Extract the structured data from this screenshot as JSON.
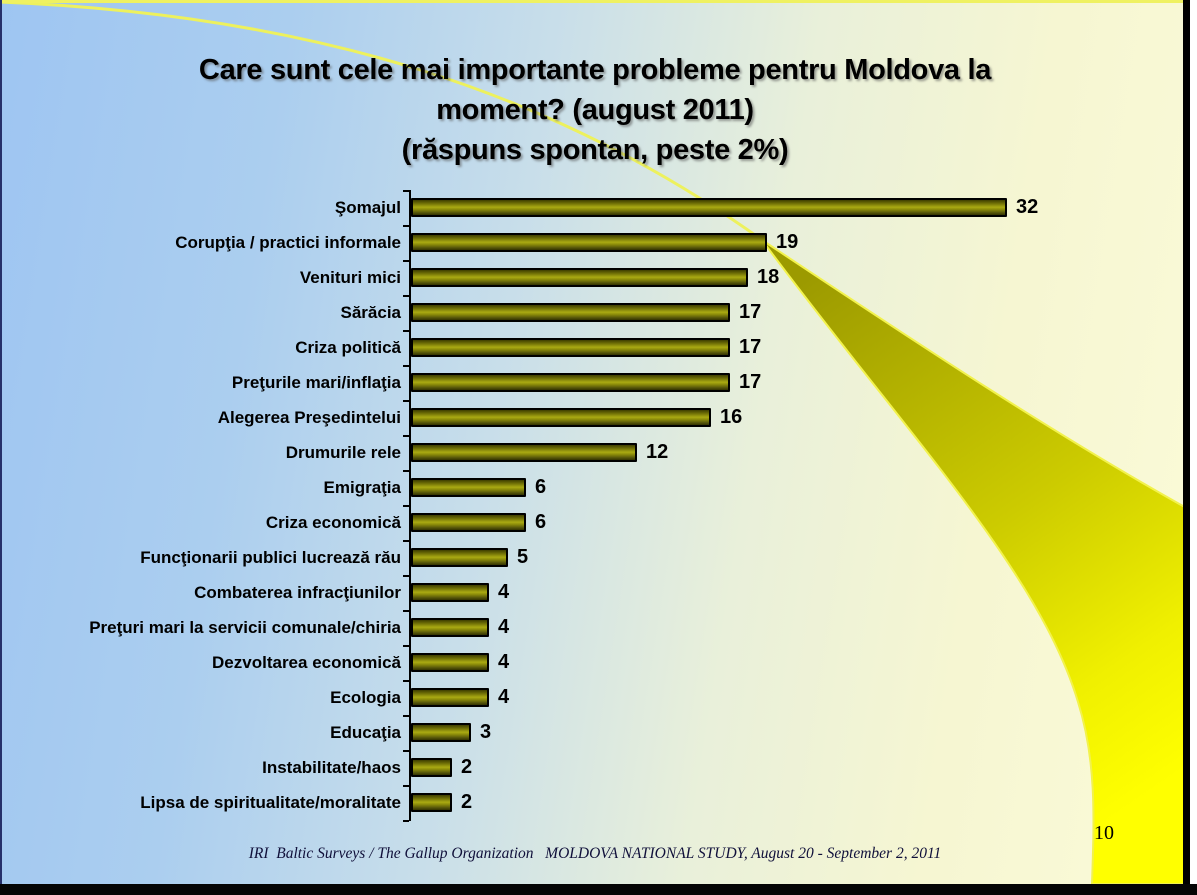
{
  "slide": {
    "title_lines": [
      "Care sunt cele mai importante probleme pentru Moldova la",
      "moment? (august 2011)",
      "(răspuns spontan, peste 2%)"
    ],
    "footer": "IRI  Baltic Surveys / The Gallup Organization   MOLDOVA NATIONAL STUDY, August 20 - September 2, 2011",
    "page_number": "10"
  },
  "colors": {
    "background_left": "#9ec5f2",
    "background_right": "#fbfbd8",
    "bar_fill_mid": "#aaaa12",
    "bar_border": "#000000",
    "swoosh_olive": "#9c9a00",
    "swoosh_yellow": "#ffff00",
    "thin_curve_line": "#edf15d",
    "title_color": "#000000",
    "footer_color": "#10103a"
  },
  "chart_data": {
    "type": "bar",
    "orientation": "horizontal",
    "title": "Care sunt cele mai importante probleme pentru Moldova la moment? (august 2011) (răspuns spontan, peste 2%)",
    "categories": [
      "Şomajul",
      "Corupţia / practici informale",
      "Venituri mici",
      "Sărăcia",
      "Criza politică",
      "Preţurile mari/inflaţia",
      "Alegerea Preşedintelui",
      "Drumurile rele",
      "Emigraţia",
      "Criza economică",
      "Funcţionarii publici lucrează rău",
      "Combaterea infracţiunilor",
      "Preţuri mari la servicii comunale/chiria",
      "Dezvoltarea economică",
      "Ecologia",
      "Educaţia",
      "Instabilitate/haos",
      "Lipsa de spiritualitate/moralitate"
    ],
    "values": [
      32,
      19,
      18,
      17,
      17,
      17,
      16,
      12,
      6,
      6,
      5,
      4,
      4,
      4,
      4,
      3,
      2,
      2
    ],
    "xlabel": "",
    "ylabel": "",
    "xlim": [
      0,
      32
    ],
    "unit": "percent",
    "value_labels": true,
    "grid": false,
    "legend": false
  }
}
